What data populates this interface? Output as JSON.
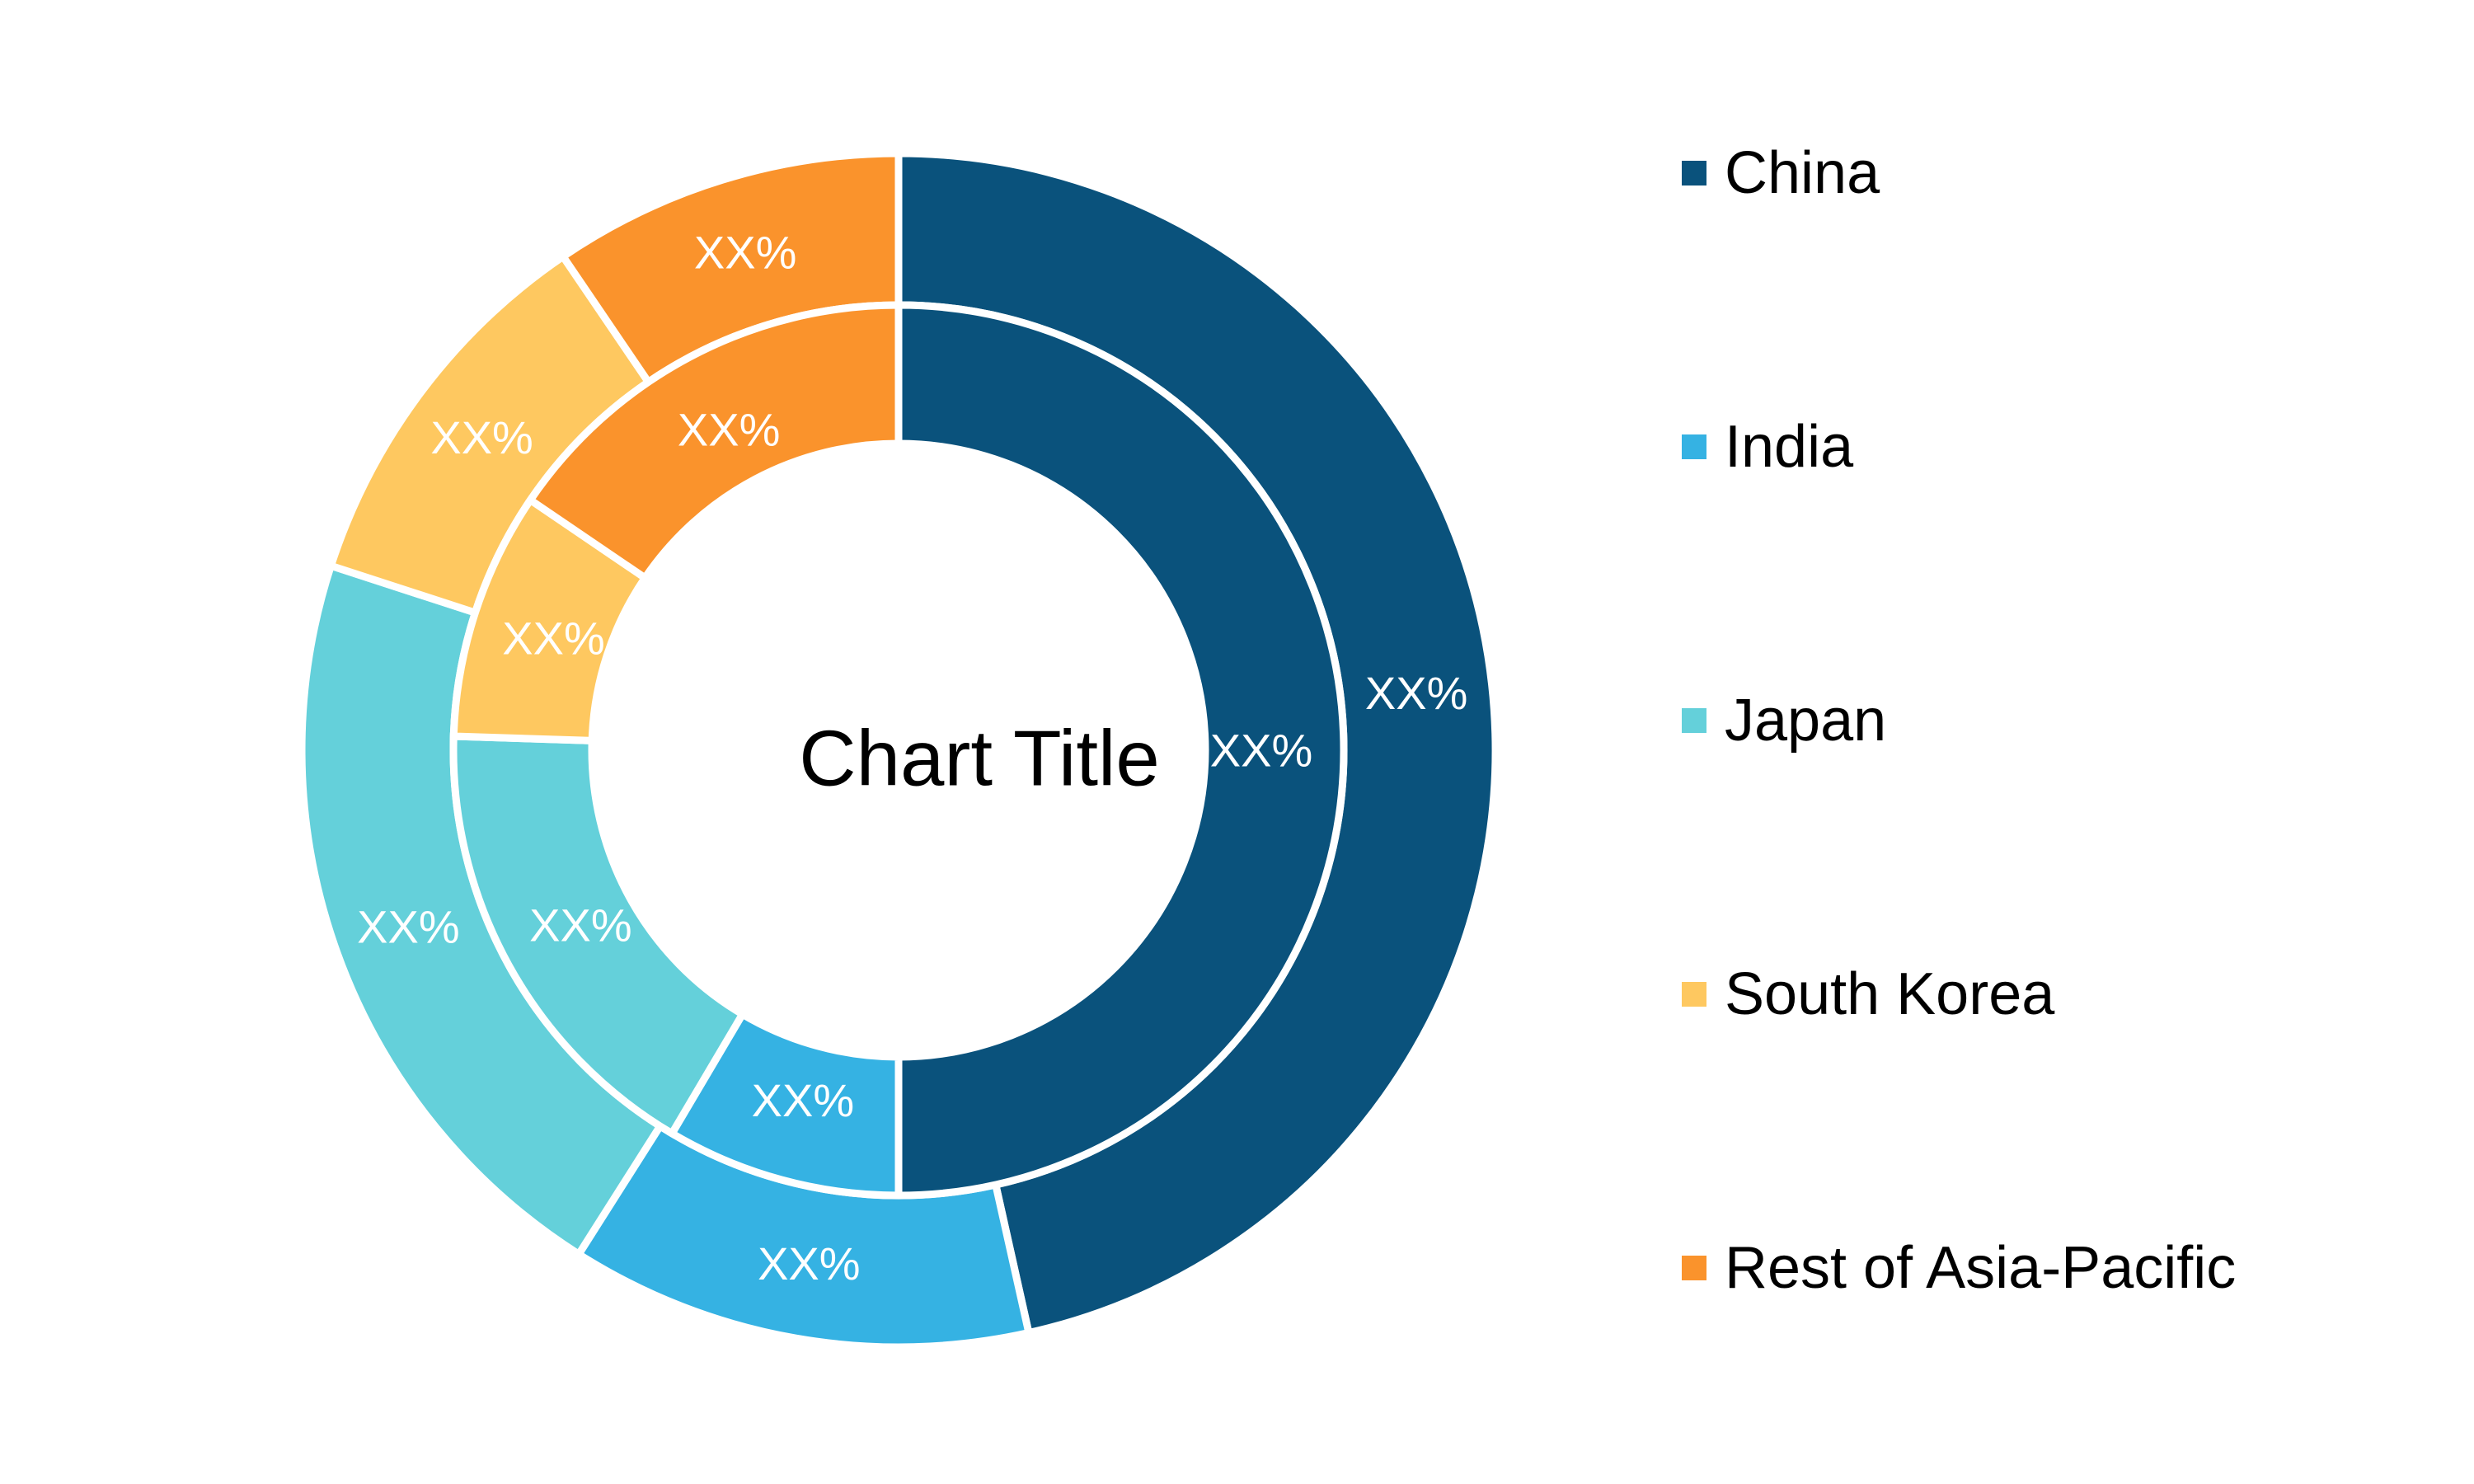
{
  "chart_data": {
    "type": "pie",
    "variant": "double-donut",
    "title": "Chart Title",
    "categories": [
      "China",
      "India",
      "Japan",
      "South Korea",
      "Rest of Asia-Pacific"
    ],
    "series": [
      {
        "ring": "inner",
        "values": [
          50,
          8.5,
          17,
          9,
          15.5
        ],
        "labels": [
          "XX%",
          "XX%",
          "XX%",
          "XX%",
          "XX%"
        ]
      },
      {
        "ring": "outer",
        "values": [
          46.5,
          12.5,
          21,
          10.5,
          9.5
        ],
        "labels": [
          "XX%",
          "XX%",
          "XX%",
          "XX%",
          "XX%"
        ]
      }
    ],
    "colors": [
      "#0A527C",
      "#35B2E3",
      "#64D0DA",
      "#FEC860",
      "#FA932C"
    ],
    "legend": "right"
  }
}
